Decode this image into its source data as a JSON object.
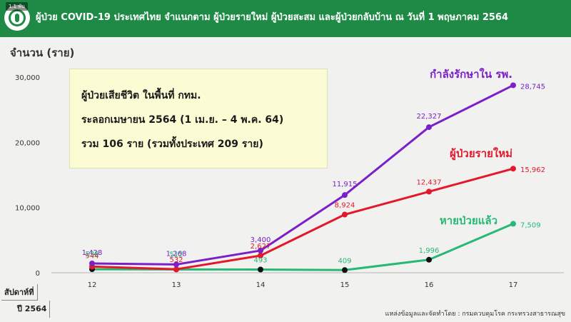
{
  "header": {
    "title": "ผู้ป่วย COVID-19 ประเทศไทย จำแนกตาม ผู้ป่วยรายใหม่ ผู้ป่วยสะสม และผู้ป่วยกลับบ้าน  ณ วันที่ 1 พฤษภาคม 2564",
    "badge": "1.1 พัน",
    "logo_icon": "ministry-of-public-health-logo"
  },
  "chart_labels": {
    "unit": "จำนวน (ราย)",
    "x_title_line1": "สัปดาห์ที่",
    "x_title_line2": "ปี 2564",
    "source": "แหล่งข้อมูลและจัดทำโดย : กรมควบคุมโรค กระทรวงสาธารณสุข"
  },
  "note": {
    "line1": "ผู้ป่วยเสียชีวิต ในพื้นที่ กทม.",
    "line2": "ระลอกเมษายน 2564 (1 เม.ย. – 4 พ.ค. 64)",
    "line3": "รวม 106 ราย (รวมทั้งประเทศ 209 ราย)"
  },
  "chart_data": {
    "type": "line",
    "categories": [
      "12",
      "13",
      "14",
      "15",
      "16",
      "17"
    ],
    "ylim": [
      0,
      30000
    ],
    "yticks": [
      0,
      10000,
      20000,
      30000
    ],
    "ytick_labels": [
      "0",
      "10,000",
      "20,000",
      "30,000"
    ],
    "grid": false,
    "series": [
      {
        "name": "กำลังรักษาใน รพ.",
        "color": "#7b1fc9",
        "values": [
          1428,
          1268,
          3400,
          11915,
          22327,
          28745
        ],
        "labels": [
          "1,428",
          "1,268",
          "3,400",
          "11,915",
          "22,327",
          "28,745"
        ]
      },
      {
        "name": "ผู้ป่วยรายใหม่",
        "color": "#e3192b",
        "values": [
          944,
          532,
          2627,
          8924,
          12437,
          15962
        ],
        "labels": [
          "944",
          "532",
          "2,627",
          "8,924",
          "12,437",
          "15,962"
        ]
      },
      {
        "name": "หายป่วยแล้ว",
        "color": "#27b875",
        "values": [
          538,
          512,
          493,
          409,
          1996,
          7509
        ],
        "labels": [
          "538",
          "512",
          "493",
          "409",
          "1,996",
          "7,509"
        ]
      }
    ]
  }
}
